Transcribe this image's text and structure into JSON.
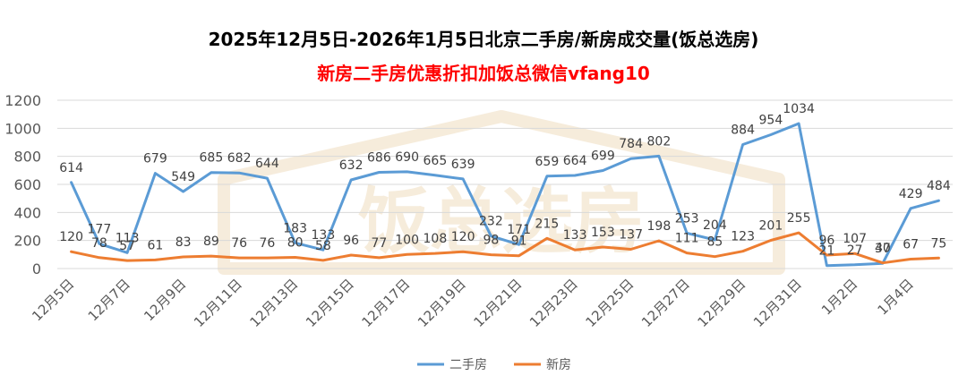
{
  "colors": {
    "series_1": "#5b9bd5",
    "series_2": "#ed7d31",
    "subtitle": "#ff0000",
    "grid": "#d9d9d9",
    "watermark": "#e6c99a"
  },
  "watermark": {
    "icon": "house-logo",
    "text": "饭总选房"
  },
  "chart_data": {
    "type": "line",
    "title": "2025年12月5日-2026年1月5日北京二手房/新房成交量(饭总选房)",
    "subtitle": "新房二手房优惠折扣加饭总微信vfang10",
    "categories": [
      "12月5日",
      "12月6日",
      "12月7日",
      "12月8日",
      "12月9日",
      "12月10日",
      "12月11日",
      "12月12日",
      "12月13日",
      "12月14日",
      "12月15日",
      "12月16日",
      "12月17日",
      "12月18日",
      "12月19日",
      "12月20日",
      "12月21日",
      "12月22日",
      "12月23日",
      "12月24日",
      "12月25日",
      "12月26日",
      "12月27日",
      "12月28日",
      "12月29日",
      "12月30日",
      "12月31日",
      "1月1日",
      "1月2日",
      "1月3日",
      "1月4日",
      "1月5日"
    ],
    "x_tick_labels": [
      "12月5日",
      "12月7日",
      "12月9日",
      "12月11日",
      "12月13日",
      "12月15日",
      "12月17日",
      "12月19日",
      "12月21日",
      "12月23日",
      "12月25日",
      "12月27日",
      "12月29日",
      "12月31日",
      "1月2日",
      "1月4日"
    ],
    "series": [
      {
        "name": "二手房",
        "values": [
          614,
          177,
          113,
          679,
          549,
          685,
          682,
          644,
          183,
          133,
          632,
          686,
          690,
          665,
          639,
          232,
          171,
          659,
          664,
          699,
          784,
          802,
          253,
          204,
          884,
          954,
          1034,
          21,
          27,
          37,
          429,
          484
        ]
      },
      {
        "name": "新房",
        "values": [
          120,
          78,
          57,
          61,
          83,
          89,
          76,
          76,
          80,
          58,
          96,
          77,
          100,
          108,
          120,
          98,
          91,
          215,
          133,
          153,
          137,
          198,
          111,
          85,
          123,
          201,
          255,
          96,
          107,
          40,
          67,
          75
        ]
      }
    ],
    "ylim": [
      0,
      1200
    ],
    "yticks": [
      0,
      200,
      400,
      600,
      800,
      1000,
      1200
    ],
    "grid": true,
    "legend": "bottom",
    "xlabel": "",
    "ylabel": ""
  }
}
